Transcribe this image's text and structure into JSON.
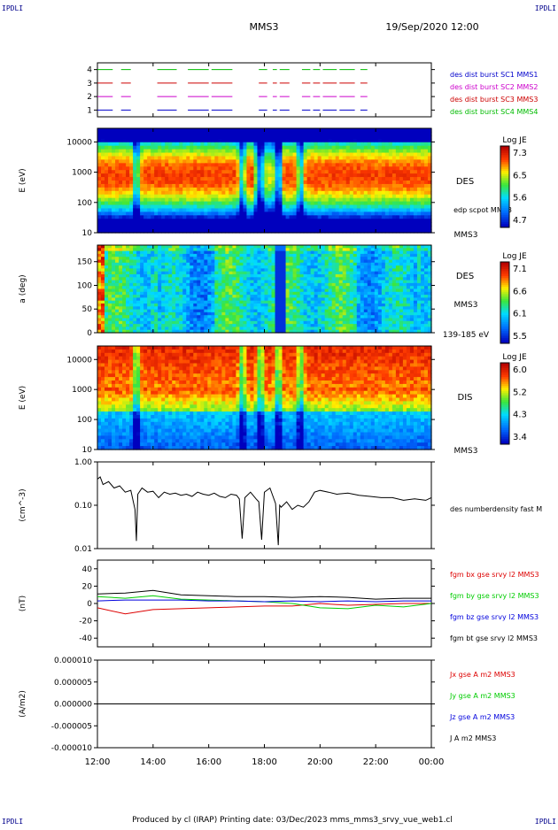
{
  "corner_marks": {
    "tl": "IPDLI",
    "tr": "IPDLI",
    "bl": "IPDLI",
    "br": "IPDLI"
  },
  "header": {
    "spacecraft": "MMS3",
    "datetime": "19/Sep/2020 12:00"
  },
  "footer": "Produced by cl (IRAP)   Printing date: 03/Dec/2023   mms_mms3_srvy_vue_web1.cl",
  "time_axis": {
    "ticks": [
      "12:00",
      "14:00",
      "16:00",
      "18:00",
      "20:00",
      "22:00",
      "00:00"
    ]
  },
  "colors": {
    "sc1": "#0000cc",
    "sc2": "#cc00cc",
    "sc3": "#cc0000",
    "sc4": "#00bb00",
    "bx": "#dd0000",
    "by": "#00cc00",
    "bz": "#0000dd",
    "bt": "#000000"
  },
  "chart_data": [
    {
      "id": "availability",
      "type": "line",
      "ylim": [
        0.5,
        4.5
      ],
      "yticks": [
        "1",
        "2",
        "3",
        "4"
      ],
      "legend": [
        {
          "text": "des dist burst SC1 MMS1",
          "color": "#0000cc"
        },
        {
          "text": "des dist burst SC2 MMS2",
          "color": "#cc00cc"
        },
        {
          "text": "des dist burst SC3 MMS3",
          "color": "#cc0000"
        },
        {
          "text": "des dist burst SC4 MMS4",
          "color": "#00bb00"
        }
      ],
      "intervals_hours": [
        [
          12.0,
          12.55
        ],
        [
          12.85,
          13.2
        ],
        [
          14.15,
          14.85
        ],
        [
          15.25,
          16.0
        ],
        [
          16.1,
          16.85
        ],
        [
          17.8,
          18.1
        ],
        [
          18.3,
          18.45
        ],
        [
          18.55,
          18.9
        ],
        [
          19.35,
          19.65
        ],
        [
          19.75,
          20.0
        ],
        [
          20.1,
          20.6
        ],
        [
          20.7,
          21.25
        ],
        [
          21.45,
          21.7
        ]
      ]
    },
    {
      "id": "des-energy",
      "type": "heatmap",
      "ylabel": "E (eV)",
      "yticks": [
        "10",
        "100",
        "1000",
        "10000"
      ],
      "label": "DES",
      "sublabel": "edp scpot MMS3",
      "sc_label": "MMS3",
      "colorbar": {
        "title": "Log JE",
        "ticks": [
          "7.3",
          "6.5",
          "5.6",
          "4.7"
        ]
      }
    },
    {
      "id": "des-pitch",
      "type": "heatmap",
      "ylabel": "a (deg)",
      "yticks": [
        "0",
        "50",
        "100",
        "150"
      ],
      "label": "DES",
      "sc_label": "MMS3",
      "energy_band": "139-185 eV",
      "colorbar": {
        "title": "Log JE",
        "ticks": [
          "7.1",
          "6.6",
          "6.1",
          "5.5"
        ]
      }
    },
    {
      "id": "dis-energy",
      "type": "heatmap",
      "ylabel": "E (eV)",
      "yticks": [
        "10",
        "100",
        "1000",
        "10000"
      ],
      "label": "DIS",
      "sc_label": "MMS3",
      "colorbar": {
        "title": "Log JE",
        "ticks": [
          "6.0",
          "5.2",
          "4.3",
          "3.4"
        ]
      }
    },
    {
      "id": "density",
      "type": "line",
      "ylabel": "(cm^-3)",
      "yticks": [
        "0.01",
        "0.10",
        "1.00"
      ],
      "ylim": [
        0.01,
        1.0
      ],
      "scale": "log",
      "legend": [
        {
          "text": "des numberdensity fast M",
          "color": "#000000"
        }
      ],
      "series": [
        {
          "x": [
            12.0,
            12.1,
            12.2,
            12.4,
            12.6,
            12.8,
            13.0,
            13.2,
            13.35,
            13.4,
            13.45,
            13.6,
            13.8,
            14.0,
            14.2,
            14.4,
            14.6,
            14.8,
            15.0,
            15.2,
            15.4,
            15.6,
            15.8,
            16.0,
            16.2,
            16.4,
            16.6,
            16.8,
            17.0,
            17.1,
            17.2,
            17.3,
            17.5,
            17.7,
            17.8,
            17.9,
            18.0,
            18.2,
            18.4,
            18.5,
            18.55,
            18.6,
            18.8,
            19.0,
            19.2,
            19.4,
            19.6,
            19.8,
            20.0,
            20.3,
            20.6,
            21.0,
            21.4,
            21.8,
            22.2,
            22.6,
            23.0,
            23.4,
            23.8,
            24.0
          ],
          "y": [
            0.4,
            0.45,
            0.3,
            0.35,
            0.25,
            0.28,
            0.2,
            0.22,
            0.08,
            0.015,
            0.18,
            0.25,
            0.2,
            0.21,
            0.15,
            0.2,
            0.18,
            0.19,
            0.17,
            0.18,
            0.16,
            0.2,
            0.18,
            0.17,
            0.19,
            0.16,
            0.15,
            0.18,
            0.17,
            0.14,
            0.017,
            0.15,
            0.2,
            0.14,
            0.12,
            0.016,
            0.2,
            0.25,
            0.11,
            0.012,
            0.1,
            0.09,
            0.12,
            0.08,
            0.1,
            0.09,
            0.12,
            0.2,
            0.22,
            0.2,
            0.18,
            0.19,
            0.17,
            0.16,
            0.15,
            0.15,
            0.13,
            0.14,
            0.13,
            0.15
          ]
        }
      ]
    },
    {
      "id": "fgm",
      "type": "line",
      "ylabel": "(nT)",
      "yticks": [
        "-40",
        "-20",
        "0",
        "20",
        "40"
      ],
      "ylim": [
        -50,
        50
      ],
      "legend": [
        {
          "text": "fgm bx gse srvy l2 MMS3",
          "color": "#dd0000"
        },
        {
          "text": "fgm by gse srvy l2 MMS3",
          "color": "#00cc00"
        },
        {
          "text": "fgm bz gse srvy l2 MMS3",
          "color": "#0000dd"
        },
        {
          "text": "fgm bt gse srvy l2 MMS3",
          "color": "#000000"
        }
      ],
      "series": [
        {
          "x": [
            12.0,
            13.0,
            14.0,
            15.0,
            16.0,
            17.0,
            18.0,
            19.0,
            20.0,
            21.0,
            22.0,
            23.0,
            24.0
          ],
          "y": [
            -5,
            -12,
            -7,
            -6,
            -5,
            -4,
            -3,
            -3,
            0,
            -2,
            -1,
            0,
            0
          ]
        },
        {
          "x": [
            12.0,
            13.0,
            14.0,
            15.0,
            16.0,
            17.0,
            18.0,
            19.0,
            20.0,
            21.0,
            22.0,
            23.0,
            24.0
          ],
          "y": [
            8,
            6,
            9,
            5,
            4,
            3,
            2,
            0,
            -5,
            -6,
            -2,
            -4,
            0
          ]
        },
        {
          "x": [
            12.0,
            13.0,
            14.0,
            15.0,
            16.0,
            17.0,
            18.0,
            19.0,
            20.0,
            21.0,
            22.0,
            23.0,
            24.0
          ],
          "y": [
            3,
            4,
            4,
            4,
            3,
            3,
            2,
            3,
            2,
            3,
            2,
            3,
            3
          ]
        },
        {
          "x": [
            12.0,
            13.0,
            14.0,
            15.0,
            16.0,
            17.0,
            18.0,
            19.0,
            20.0,
            21.0,
            22.0,
            23.0,
            24.0
          ],
          "y": [
            11,
            12,
            15,
            10,
            9,
            8,
            8,
            7,
            8,
            7,
            5,
            6,
            6
          ]
        }
      ]
    },
    {
      "id": "current",
      "type": "line",
      "ylabel": "(A/m2)",
      "yticks": [
        "-0.000010",
        "-0.000005",
        "0.000000",
        "0.000005",
        "0.000010"
      ],
      "ylim": [
        -1e-05,
        1e-05
      ],
      "legend": [
        {
          "text": "Jx gse A m2 MMS3",
          "color": "#dd0000"
        },
        {
          "text": "Jy gse A m2 MMS3",
          "color": "#00cc00"
        },
        {
          "text": "Jz gse A m2 MMS3",
          "color": "#0000dd"
        },
        {
          "text": "J A m2 MMS3",
          "color": "#000000"
        }
      ],
      "series": [
        {
          "x": [
            12.0,
            24.0
          ],
          "y": [
            0,
            0
          ]
        }
      ]
    }
  ]
}
